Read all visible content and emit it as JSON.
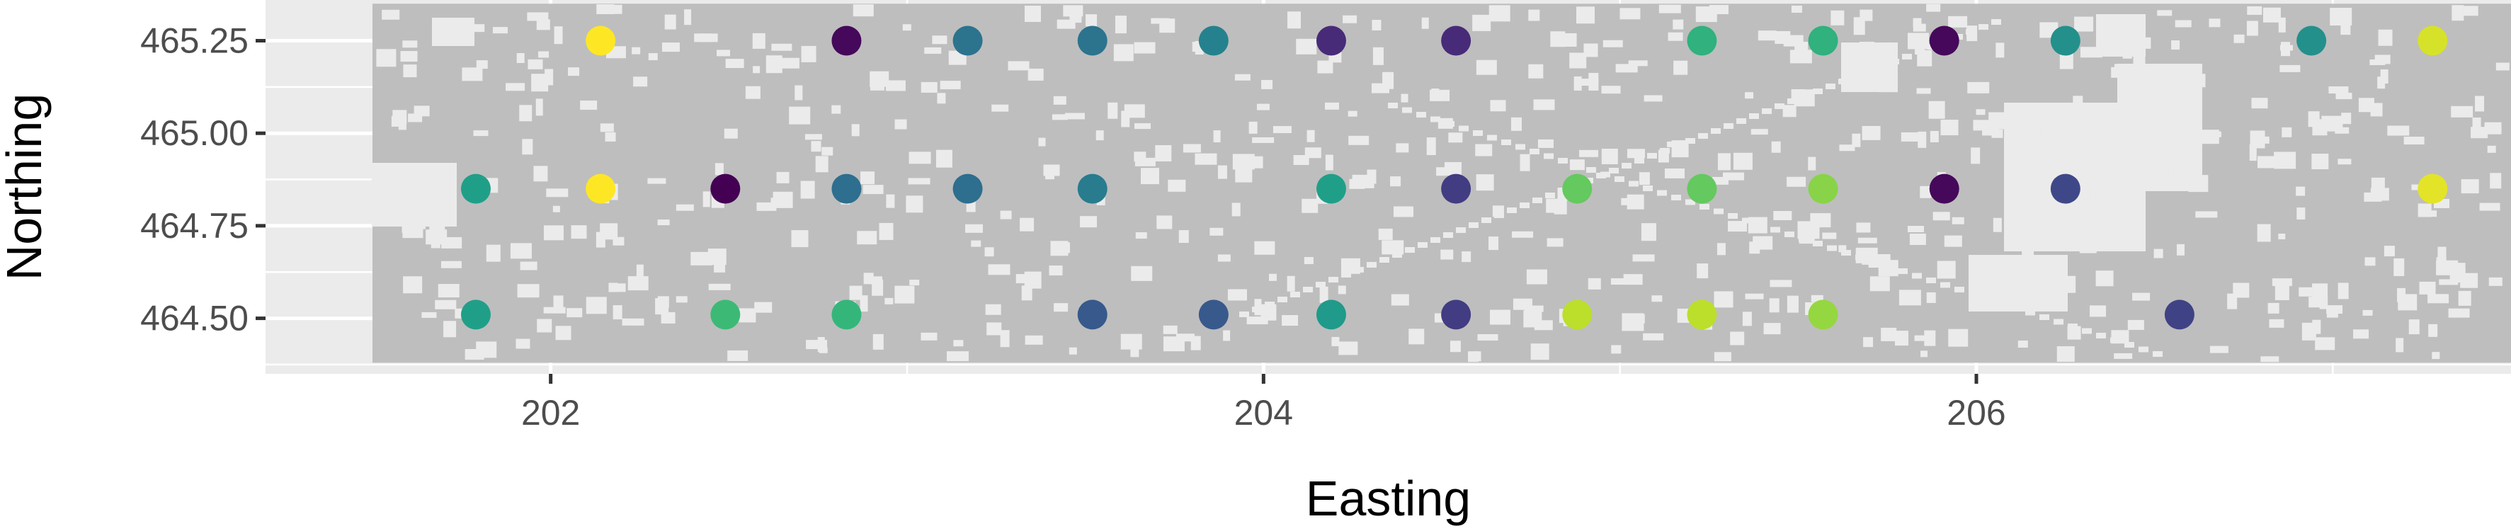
{
  "chart_data": {
    "type": "scatter",
    "title": "",
    "xlabel": "Easting",
    "ylabel": "Northing",
    "xlim": [
      201.2,
      207.5
    ],
    "ylim": [
      464.35,
      465.36
    ],
    "x_ticks": [
      202,
      204,
      206
    ],
    "x_tick_labels": [
      "202",
      "204",
      "206"
    ],
    "y_ticks": [
      464.5,
      464.75,
      465.0,
      465.25
    ],
    "y_tick_labels": [
      "464.50",
      "464.75",
      "465.00",
      "465.25"
    ],
    "grid": true,
    "legend": "none",
    "background_raster": {
      "description": "grey raster mask covering the study area",
      "x_range": [
        201.5,
        207.5
      ],
      "y_range": [
        464.38,
        465.35
      ],
      "color": "#bebebe"
    },
    "colormap": "viridis",
    "points": [
      {
        "x": 202.14,
        "y": 465.25,
        "value": 1.0
      },
      {
        "x": 202.83,
        "y": 465.25,
        "value": 0.02
      },
      {
        "x": 203.17,
        "y": 465.25,
        "value": 0.38
      },
      {
        "x": 203.52,
        "y": 465.25,
        "value": 0.38
      },
      {
        "x": 203.86,
        "y": 465.25,
        "value": 0.44
      },
      {
        "x": 204.19,
        "y": 465.25,
        "value": 0.12
      },
      {
        "x": 204.54,
        "y": 465.25,
        "value": 0.12
      },
      {
        "x": 205.23,
        "y": 465.25,
        "value": 0.64
      },
      {
        "x": 205.57,
        "y": 465.25,
        "value": 0.64
      },
      {
        "x": 205.91,
        "y": 465.25,
        "value": 0.02
      },
      {
        "x": 206.25,
        "y": 465.25,
        "value": 0.5
      },
      {
        "x": 206.94,
        "y": 465.25,
        "value": 0.5
      },
      {
        "x": 207.28,
        "y": 465.25,
        "value": 0.94
      },
      {
        "x": 201.79,
        "y": 464.85,
        "value": 0.56
      },
      {
        "x": 202.14,
        "y": 464.85,
        "value": 1.0
      },
      {
        "x": 202.49,
        "y": 464.85,
        "value": 0.0
      },
      {
        "x": 202.83,
        "y": 464.85,
        "value": 0.36
      },
      {
        "x": 203.17,
        "y": 464.85,
        "value": 0.36
      },
      {
        "x": 203.52,
        "y": 464.85,
        "value": 0.42
      },
      {
        "x": 204.19,
        "y": 464.85,
        "value": 0.56
      },
      {
        "x": 204.54,
        "y": 464.85,
        "value": 0.18
      },
      {
        "x": 204.88,
        "y": 464.85,
        "value": 0.76
      },
      {
        "x": 205.23,
        "y": 464.85,
        "value": 0.76
      },
      {
        "x": 205.57,
        "y": 464.85,
        "value": 0.82
      },
      {
        "x": 205.91,
        "y": 464.85,
        "value": 0.02
      },
      {
        "x": 206.25,
        "y": 464.85,
        "value": 0.22
      },
      {
        "x": 207.28,
        "y": 464.85,
        "value": 0.96
      },
      {
        "x": 201.79,
        "y": 464.51,
        "value": 0.56
      },
      {
        "x": 202.49,
        "y": 464.51,
        "value": 0.68
      },
      {
        "x": 202.83,
        "y": 464.51,
        "value": 0.66
      },
      {
        "x": 203.52,
        "y": 464.51,
        "value": 0.28
      },
      {
        "x": 203.86,
        "y": 464.51,
        "value": 0.28
      },
      {
        "x": 204.19,
        "y": 464.51,
        "value": 0.54
      },
      {
        "x": 204.54,
        "y": 464.51,
        "value": 0.18
      },
      {
        "x": 204.88,
        "y": 464.51,
        "value": 0.9
      },
      {
        "x": 205.23,
        "y": 464.51,
        "value": 0.9
      },
      {
        "x": 205.57,
        "y": 464.51,
        "value": 0.84
      },
      {
        "x": 206.57,
        "y": 464.51,
        "value": 0.2
      }
    ]
  }
}
